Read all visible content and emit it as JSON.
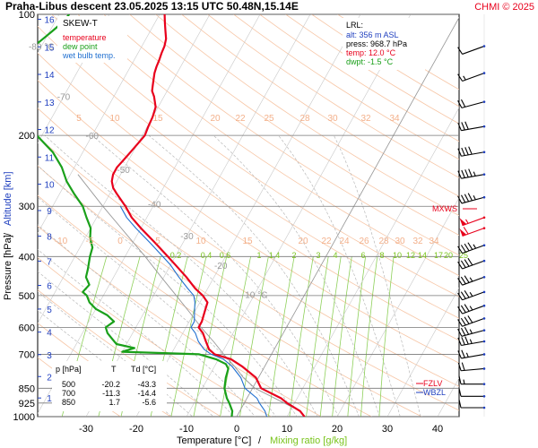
{
  "header": {
    "title": "Praha-Libus   descent   23.05.2025 13:15 UTC   50.48N,15.14E",
    "copyright": "CHMI © 2025"
  },
  "legend": {
    "title": "SKEW-T",
    "items": [
      {
        "label": "temperature",
        "color": "#e8001c"
      },
      {
        "label": "dew point",
        "color": "#1aa01a"
      },
      {
        "label": "wet bulb temp.",
        "color": "#1f6fd0"
      }
    ]
  },
  "lrl": {
    "title": "LRL:",
    "alt": "alt: 356 m ASL",
    "press": "press: 968.7 hPa",
    "temp": "temp: 12.0 °C",
    "dwpt": "dwpt: -1.5 °C"
  },
  "axes": {
    "xlabel": "Temperature [°C]",
    "xlabel_sep": "/",
    "xlabel2": "Mixing ratio [g/kg]",
    "ylabel": "Pressure [hPa]",
    "ylabel_sep": "/",
    "ylabel2": "Altitude [km]"
  },
  "markers": {
    "mxws": "MXWS",
    "fzlv": "FZLV",
    "wbzl": "WBZL"
  },
  "table": {
    "headers": [
      "p [hPa]",
      "T",
      "Td [°C]"
    ],
    "rows": [
      [
        "500",
        "-20.2",
        "-43.3"
      ],
      [
        "700",
        "-11.3",
        "-14.4"
      ],
      [
        "850",
        "1.7",
        "-5.6"
      ]
    ]
  },
  "colors": {
    "temperature": "#e8001c",
    "dewpoint": "#1aa01a",
    "wetbulb": "#1f6fd0",
    "dry_adiabat": "#f7c6a6",
    "moist_adiabat": "#b9b9b9",
    "mixing_ratio": "#8ed05a",
    "altitude": "#1f3fbf",
    "wind_barb_red": "#e8001c",
    "wind_barb_blue": "#1f3fbf"
  },
  "chart_data": {
    "type": "line",
    "title": "SKEW-T",
    "xlabel": "Temperature [°C]",
    "ylabel": "Pressure [hPa]",
    "x_ticks": [
      "-30",
      "-20",
      "-10",
      "0",
      "10",
      "20",
      "30",
      "40"
    ],
    "y_ticks": [
      "100",
      "200",
      "300",
      "400",
      "500",
      "600",
      "700",
      "850",
      "925",
      "1000"
    ],
    "km_ticks": [
      "16",
      "15",
      "14",
      "13",
      "12",
      "11",
      "10",
      "9",
      "8",
      "7",
      "6",
      "5",
      "4",
      "3",
      "2",
      "1"
    ],
    "isotherm_labels": [
      "-80 °C",
      "-70",
      "-60",
      "-50",
      "-40",
      "-30",
      "-20",
      "-10 °C"
    ],
    "dry_adiabat_labels_top": [
      "5",
      "10",
      "15",
      "20",
      "22",
      "25",
      "28",
      "30",
      "32",
      "34"
    ],
    "dry_adiabat_labels_mid": [
      "-10",
      "-5",
      "0",
      "5",
      "10",
      "15",
      "20",
      "22",
      "24",
      "26",
      "28",
      "30",
      "32",
      "34"
    ],
    "mixing_ratio_labels": [
      "0.2",
      "0.4",
      "0.6",
      "1",
      "1.4",
      "2",
      "3",
      "4",
      "6",
      "8",
      "10",
      "12",
      "14",
      "17",
      "20",
      "25"
    ],
    "series": [
      {
        "name": "temperature",
        "points": [
          [
            1000,
            13.5
          ],
          [
            968.7,
            12.0
          ],
          [
            925,
            8.5
          ],
          [
            900,
            6.8
          ],
          [
            850,
            1.7
          ],
          [
            800,
            -0.5
          ],
          [
            750,
            -4.5
          ],
          [
            720,
            -7.5
          ],
          [
            700,
            -11.3
          ],
          [
            680,
            -13.0
          ],
          [
            650,
            -14.5
          ],
          [
            620,
            -16.0
          ],
          [
            600,
            -17.5
          ],
          [
            580,
            -17.5
          ],
          [
            550,
            -18.0
          ],
          [
            520,
            -18.5
          ],
          [
            500,
            -20.2
          ],
          [
            480,
            -22.5
          ],
          [
            450,
            -25.5
          ],
          [
            420,
            -29.0
          ],
          [
            400,
            -31.5
          ],
          [
            370,
            -35.5
          ],
          [
            340,
            -40.0
          ],
          [
            320,
            -43.0
          ],
          [
            300,
            -45.5
          ],
          [
            280,
            -48.5
          ],
          [
            270,
            -50.0
          ],
          [
            260,
            -51.0
          ],
          [
            250,
            -51.5
          ],
          [
            240,
            -51.5
          ],
          [
            230,
            -51.0
          ],
          [
            220,
            -50.5
          ],
          [
            210,
            -50.0
          ],
          [
            200,
            -49.5
          ],
          [
            190,
            -49.8
          ],
          [
            180,
            -50.0
          ],
          [
            170,
            -50.5
          ],
          [
            160,
            -52.0
          ],
          [
            155,
            -53.0
          ],
          [
            150,
            -53.5
          ],
          [
            145,
            -54.0
          ],
          [
            140,
            -54.5
          ],
          [
            135,
            -54.8
          ],
          [
            130,
            -55.0
          ],
          [
            125,
            -55.3
          ],
          [
            120,
            -55.5
          ],
          [
            115,
            -56.0
          ],
          [
            110,
            -57.0
          ],
          [
            105,
            -58.0
          ],
          [
            100,
            -59.0
          ]
        ]
      },
      {
        "name": "dew point",
        "points": [
          [
            1000,
            -1.0
          ],
          [
            968.7,
            -1.5
          ],
          [
            925,
            -3.0
          ],
          [
            900,
            -4.0
          ],
          [
            850,
            -5.6
          ],
          [
            800,
            -6.5
          ],
          [
            760,
            -7.0
          ],
          [
            740,
            -8.0
          ],
          [
            720,
            -10.5
          ],
          [
            700,
            -14.4
          ],
          [
            690,
            -30.0
          ],
          [
            675,
            -28.0
          ],
          [
            660,
            -32.0
          ],
          [
            640,
            -33.5
          ],
          [
            620,
            -35.0
          ],
          [
            600,
            -36.0
          ],
          [
            580,
            -35.0
          ],
          [
            560,
            -37.0
          ],
          [
            540,
            -40.0
          ],
          [
            520,
            -42.0
          ],
          [
            500,
            -43.3
          ],
          [
            490,
            -44.5
          ],
          [
            470,
            -44.0
          ],
          [
            450,
            -45.5
          ],
          [
            430,
            -46.0
          ],
          [
            400,
            -47.0
          ],
          [
            380,
            -47.5
          ],
          [
            360,
            -49.0
          ],
          [
            340,
            -50.0
          ],
          [
            320,
            -52.0
          ],
          [
            300,
            -54.0
          ],
          [
            280,
            -57.0
          ],
          [
            260,
            -60.0
          ],
          [
            240,
            -62.5
          ],
          [
            220,
            -66.0
          ],
          [
            200,
            -71.0
          ],
          [
            190,
            -73.0
          ],
          [
            180,
            -75.0
          ],
          [
            170,
            -78.0
          ],
          [
            160,
            -82.0
          ],
          [
            150,
            -85.0
          ],
          [
            145,
            -86.0
          ],
          [
            140,
            -86.0
          ],
          [
            135,
            -85.0
          ],
          [
            130,
            -83.5
          ],
          [
            125,
            -82.5
          ],
          [
            120,
            -81.5
          ],
          [
            115,
            -80.5
          ],
          [
            110,
            -79.5
          ],
          [
            105,
            -78.5
          ],
          [
            100,
            -78.0
          ]
        ]
      },
      {
        "name": "wet bulb temp.",
        "points": [
          [
            1000,
            6.0
          ],
          [
            968.7,
            5.0
          ],
          [
            925,
            3.0
          ],
          [
            900,
            2.0
          ],
          [
            850,
            -1.5
          ],
          [
            800,
            -3.5
          ],
          [
            750,
            -6.5
          ],
          [
            720,
            -9.0
          ],
          [
            700,
            -12.0
          ],
          [
            680,
            -14.0
          ],
          [
            650,
            -16.0
          ],
          [
            620,
            -17.5
          ],
          [
            600,
            -19.0
          ],
          [
            580,
            -19.0
          ],
          [
            550,
            -20.0
          ],
          [
            520,
            -21.0
          ],
          [
            500,
            -22.0
          ],
          [
            480,
            -24.0
          ],
          [
            450,
            -27.0
          ],
          [
            420,
            -30.0
          ],
          [
            400,
            -32.5
          ],
          [
            370,
            -36.5
          ],
          [
            340,
            -41.0
          ],
          [
            320,
            -44.0
          ],
          [
            300,
            -46.5
          ]
        ]
      },
      {
        "name": "parcel",
        "points": [
          [
            968.7,
            12.0
          ],
          [
            850,
            0.5
          ],
          [
            800,
            -3.0
          ],
          [
            750,
            -6.0
          ],
          [
            700,
            -9.5
          ],
          [
            650,
            -13.0
          ],
          [
            600,
            -17.0
          ],
          [
            550,
            -21.0
          ],
          [
            500,
            -25.5
          ],
          [
            450,
            -30.5
          ],
          [
            400,
            -36.0
          ],
          [
            350,
            -42.5
          ],
          [
            300,
            -50.0
          ],
          [
            250,
            -58.5
          ]
        ]
      }
    ],
    "wind_barbs": [
      {
        "p": 120,
        "dir": 250,
        "spd": 10
      },
      {
        "p": 140,
        "dir": 250,
        "spd": 15
      },
      {
        "p": 165,
        "dir": 255,
        "spd": 20
      },
      {
        "p": 190,
        "dir": 260,
        "spd": 30
      },
      {
        "p": 220,
        "dir": 260,
        "spd": 40
      },
      {
        "p": 250,
        "dir": 260,
        "spd": 45
      },
      {
        "p": 285,
        "dir": 255,
        "spd": 45
      },
      {
        "p": 320,
        "dir": 250,
        "spd": 55
      },
      {
        "p": 340,
        "dir": 250,
        "spd": 60
      },
      {
        "p": 375,
        "dir": 250,
        "spd": 45
      },
      {
        "p": 410,
        "dir": 250,
        "spd": 40
      },
      {
        "p": 450,
        "dir": 250,
        "spd": 35
      },
      {
        "p": 490,
        "dir": 250,
        "spd": 35
      },
      {
        "p": 530,
        "dir": 250,
        "spd": 35
      },
      {
        "p": 570,
        "dir": 250,
        "spd": 40
      },
      {
        "p": 610,
        "dir": 255,
        "spd": 35
      },
      {
        "p": 650,
        "dir": 260,
        "spd": 35
      },
      {
        "p": 700,
        "dir": 260,
        "spd": 25
      },
      {
        "p": 760,
        "dir": 265,
        "spd": 20
      },
      {
        "p": 830,
        "dir": 270,
        "spd": 15
      },
      {
        "p": 890,
        "dir": 270,
        "spd": 10
      },
      {
        "p": 950,
        "dir": 270,
        "spd": 10
      }
    ]
  }
}
